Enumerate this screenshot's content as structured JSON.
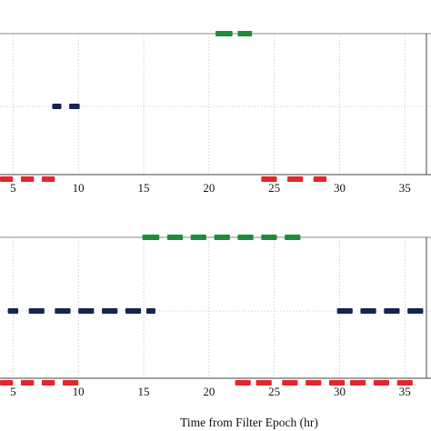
{
  "chart_data": [
    {
      "type": "timeline",
      "x_ticks": [
        5,
        10,
        15,
        20,
        25,
        30,
        35
      ],
      "xlim": [
        4,
        37
      ],
      "grid": true,
      "xlabel": "",
      "series": [
        {
          "level": 3,
          "color": "#1e8c3a",
          "intervals": [
            [
              20.5,
              21.8
            ],
            [
              22.2,
              23.3
            ]
          ]
        },
        {
          "level": 2,
          "color": "#16264f",
          "intervals": [
            [
              8.0,
              8.7
            ],
            [
              9.3,
              10.1
            ]
          ]
        },
        {
          "level": 1,
          "color": "#e3262e",
          "intervals": [
            [
              4.0,
              5.0
            ],
            [
              5.6,
              6.6
            ],
            [
              7.2,
              8.2
            ],
            [
              24.0,
              25.2
            ],
            [
              26.0,
              27.2
            ],
            [
              28.0,
              29.0
            ]
          ]
        }
      ]
    },
    {
      "type": "timeline",
      "x_ticks": [
        5,
        10,
        15,
        20,
        25,
        30,
        35
      ],
      "xlim": [
        4,
        37
      ],
      "grid": true,
      "xlabel": "Time from Filter Epoch (hr)",
      "series": [
        {
          "level": 3,
          "color": "#1e8c3a",
          "intervals": [
            [
              14.9,
              16.2
            ],
            [
              16.8,
              18.0
            ],
            [
              18.6,
              19.8
            ],
            [
              20.4,
              21.6
            ],
            [
              22.2,
              23.4
            ],
            [
              24.0,
              25.2
            ],
            [
              25.8,
              27.0
            ]
          ]
        },
        {
          "level": 2,
          "color": "#16264f",
          "intervals": [
            [
              4.6,
              5.4
            ],
            [
              6.2,
              7.4
            ],
            [
              8.2,
              9.4
            ],
            [
              10.0,
              11.2
            ],
            [
              11.8,
              13.0
            ],
            [
              13.6,
              14.8
            ],
            [
              15.2,
              15.9
            ],
            [
              29.8,
              31.0
            ],
            [
              31.6,
              32.8
            ],
            [
              33.4,
              34.6
            ],
            [
              35.2,
              36.4
            ]
          ]
        },
        {
          "level": 1,
          "color": "#e3262e",
          "intervals": [
            [
              4.0,
              5.0
            ],
            [
              5.6,
              6.6
            ],
            [
              7.2,
              8.2
            ],
            [
              8.8,
              10.0
            ],
            [
              22.0,
              23.2
            ],
            [
              23.6,
              24.8
            ],
            [
              25.6,
              26.8
            ],
            [
              27.4,
              28.6
            ],
            [
              29.2,
              30.4
            ],
            [
              30.8,
              32.0
            ],
            [
              32.6,
              33.8
            ],
            [
              34.4,
              35.6
            ]
          ]
        }
      ]
    }
  ]
}
